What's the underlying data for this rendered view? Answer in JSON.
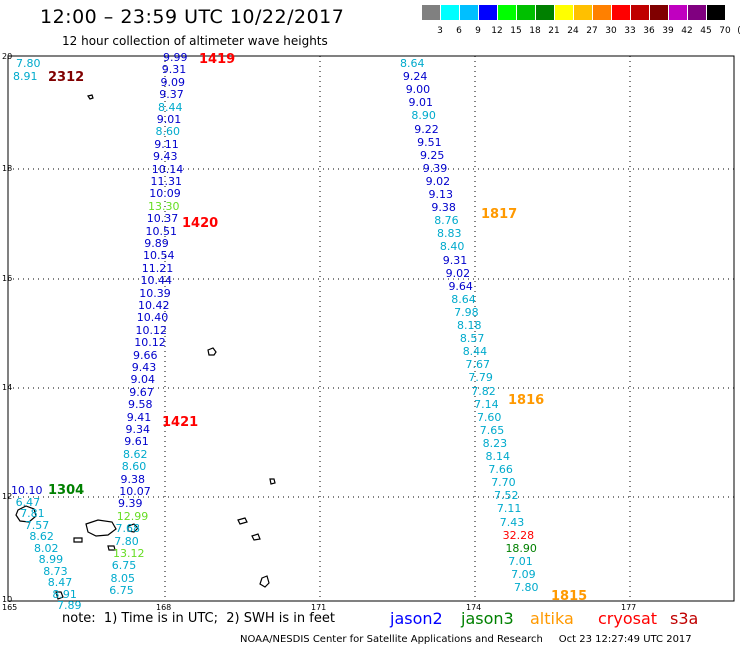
{
  "header": {
    "title": "12:00 – 23:59 UTC 10/22/2017",
    "subtitle": "12 hour collection of altimeter wave heights"
  },
  "color_scale": {
    "colors": [
      "#808080",
      "#00ffff",
      "#00bfff",
      "#0000ff",
      "#00ff00",
      "#00c000",
      "#008000",
      "#ffff00",
      "#ffc000",
      "#ff8000",
      "#ff0000",
      "#c00000",
      "#800000",
      "#c000c0",
      "#800080",
      "#000000"
    ],
    "labels": [
      "3",
      "6",
      "9",
      "12",
      "15",
      "18",
      "21",
      "24",
      "27",
      "30",
      "33",
      "36",
      "39",
      "42",
      "45",
      "70",
      "(ft)"
    ]
  },
  "axes": {
    "lat_labels": [
      "20",
      "18",
      "16",
      "14",
      "12",
      "10"
    ],
    "lon_labels": [
      "165",
      "168",
      "171",
      "174",
      "177"
    ]
  },
  "tracks": [
    {
      "satellite": "jason2",
      "values": [
        "9.99",
        "9.31",
        "9.09",
        "9.37",
        "8.44",
        "9.01",
        "8.60",
        "9.11",
        "9.43",
        "10.14",
        "11.31",
        "10.09",
        "13.30",
        "10.37",
        "10.51",
        "9.89",
        "10.54",
        "11.21",
        "10.44",
        "10.39",
        "10.42",
        "10.40",
        "10.12",
        "10.12",
        "9.66",
        "9.43",
        "9.04",
        "9.67",
        "9.58",
        "9.41",
        "9.34",
        "9.61",
        "8.62",
        "8.60",
        "9.38",
        "10.07",
        "9.39",
        "12.99",
        "7.68",
        "7.80",
        "13.12",
        "6.75",
        "8.05",
        "6.75"
      ]
    },
    {
      "satellite": "jason2",
      "values": [
        "8.64",
        "9.24",
        "9.00",
        "9.01",
        "8.90",
        "9.22",
        "9.51",
        "9.25",
        "9.39",
        "9.02",
        "9.13",
        "9.38",
        "8.76",
        "8.83",
        "8.40",
        "9.31",
        "9.02",
        "9.64",
        "8.64",
        "7.98",
        "8.18",
        "8.57",
        "8.44",
        "7.67",
        "7.79",
        "7.82",
        "7.14",
        "7.60",
        "7.65",
        "8.23",
        "8.14",
        "7.66",
        "7.70",
        "7.52",
        "7.11",
        "7.43",
        "32.28",
        "18.90",
        "7.01",
        "7.09",
        "7.80"
      ]
    },
    {
      "satellite": "jason2",
      "values": [
        "7.80",
        "8.91"
      ]
    },
    {
      "satellite": "jason2",
      "values": [
        "10.10",
        "6.47",
        "7.81",
        "7.57",
        "8.62",
        "8.02",
        "8.99",
        "8.73",
        "8.47",
        "8.91",
        "7.89"
      ]
    }
  ],
  "pass_labels": [
    {
      "text": "2312",
      "color": "#800000"
    },
    {
      "text": "1419",
      "color": "#ff0000"
    },
    {
      "text": "1420",
      "color": "#ff0000"
    },
    {
      "text": "1421",
      "color": "#ff0000"
    },
    {
      "text": "1304",
      "color": "#008000"
    },
    {
      "text": "1817",
      "color": "#ff9900"
    },
    {
      "text": "1816",
      "color": "#ff9900"
    },
    {
      "text": "1815",
      "color": "#ff9900"
    }
  ],
  "legend": {
    "note": "note:  1) Time is in UTC;  2) SWH is in feet",
    "satellites": [
      {
        "name": "jason2",
        "color": "#0000ff"
      },
      {
        "name": "jason3",
        "color": "#008000"
      },
      {
        "name": "altika",
        "color": "#ff9900"
      },
      {
        "name": "cryosat",
        "color": "#ff0000"
      },
      {
        "name": "s3a",
        "color": "#c00000"
      }
    ]
  },
  "footer": {
    "credit": "NOAA/NESDIS Center for Satellite Applications and Research     Oct 23 12:27:49 UTC 2017"
  }
}
